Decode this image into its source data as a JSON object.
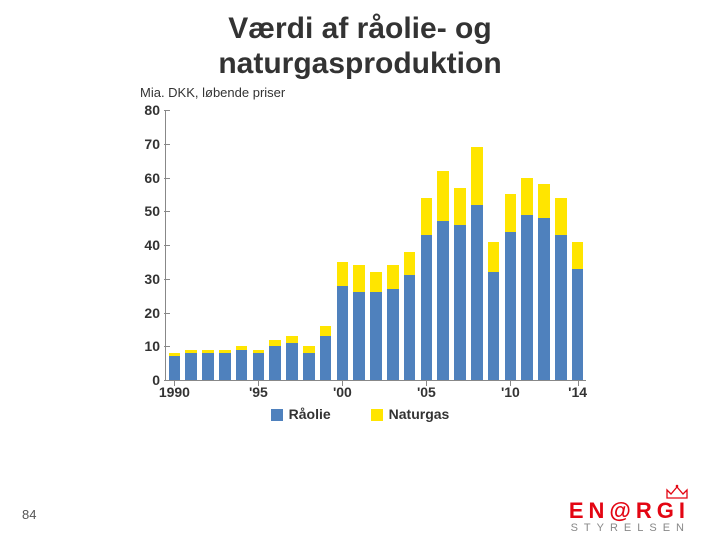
{
  "title_line1": "Værdi af råolie- og",
  "title_line2": "naturgasproduktion",
  "title_fontsize": 30,
  "title_color": "#333333",
  "subtitle": "Mia. DKK, løbende priser",
  "page_number": "84",
  "logo": {
    "main": "EN@RGI",
    "sub": "STYRELSEN",
    "color": "#e30613",
    "sub_color": "#888888"
  },
  "chart": {
    "type": "stacked-bar",
    "background_color": "#ffffff",
    "axis_color": "#888888",
    "label_fontsize": 14,
    "ylim": [
      0,
      80
    ],
    "ytick_step": 10,
    "yticks": [
      0,
      10,
      20,
      30,
      40,
      50,
      60,
      70,
      80
    ],
    "categories": [
      "1990",
      "1991",
      "1992",
      "1993",
      "1994",
      "1995",
      "1996",
      "1997",
      "1998",
      "1999",
      "2000",
      "2001",
      "2002",
      "2003",
      "2004",
      "2005",
      "2006",
      "2007",
      "2008",
      "2009",
      "2010",
      "2011",
      "2012",
      "2013",
      "2014"
    ],
    "xtick_labels": {
      "0": "1990",
      "5": "'95",
      "10": "'00",
      "15": "'05",
      "20": "'10",
      "24": "'14"
    },
    "series": [
      {
        "name": "Råolie",
        "color": "#4f81bd",
        "values": [
          7,
          8,
          8,
          8,
          9,
          8,
          10,
          11,
          8,
          13,
          28,
          26,
          26,
          27,
          31,
          43,
          47,
          46,
          52,
          32,
          44,
          49,
          48,
          43,
          33
        ]
      },
      {
        "name": "Naturgas",
        "color": "#ffe500",
        "values": [
          1,
          1,
          1,
          1,
          1,
          1,
          2,
          2,
          2,
          3,
          7,
          8,
          6,
          7,
          7,
          11,
          15,
          11,
          17,
          9,
          11,
          11,
          10,
          11,
          8
        ]
      }
    ],
    "bar_width_ratio": 0.7,
    "legend_labels": [
      "Råolie",
      "Naturgas"
    ]
  }
}
